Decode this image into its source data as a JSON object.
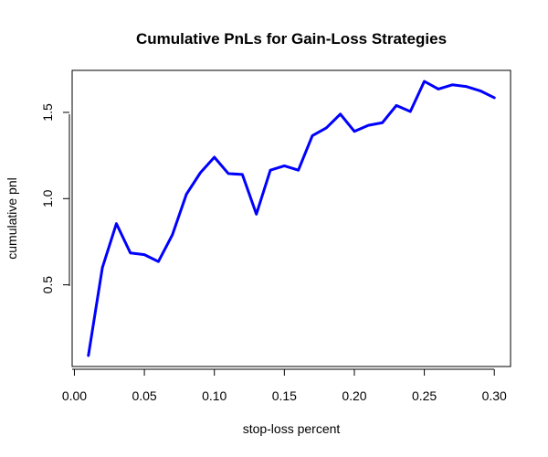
{
  "chart_data": {
    "type": "line",
    "title": "Cumulative PnLs for Gain-Loss Strategies",
    "xlabel": "stop-loss percent",
    "ylabel": "cumulative pnl",
    "xlim": [
      0.0,
      0.3
    ],
    "ylim": [
      0.09,
      1.68
    ],
    "x_ticks": [
      "0.00",
      "0.05",
      "0.10",
      "0.15",
      "0.20",
      "0.25",
      "0.30"
    ],
    "y_ticks": [
      "0.5",
      "1.0",
      "1.5"
    ],
    "grid": false,
    "line_color": "#0000ff",
    "series": [
      {
        "x": [
          0.01,
          0.02,
          0.03,
          0.04,
          0.05,
          0.06,
          0.07,
          0.08,
          0.09,
          0.1,
          0.11,
          0.12,
          0.13,
          0.14,
          0.15,
          0.16,
          0.17,
          0.18,
          0.19,
          0.2,
          0.21,
          0.22,
          0.23,
          0.24,
          0.25,
          0.26,
          0.27,
          0.28,
          0.29,
          0.3
        ],
        "values": [
          0.09,
          0.6,
          0.855,
          0.685,
          0.675,
          0.635,
          0.79,
          1.025,
          1.15,
          1.24,
          1.145,
          1.14,
          0.91,
          1.165,
          1.19,
          1.165,
          1.365,
          1.41,
          1.49,
          1.39,
          1.425,
          1.44,
          1.54,
          1.505,
          1.68,
          1.635,
          1.66,
          1.65,
          1.625,
          1.585
        ]
      }
    ]
  }
}
